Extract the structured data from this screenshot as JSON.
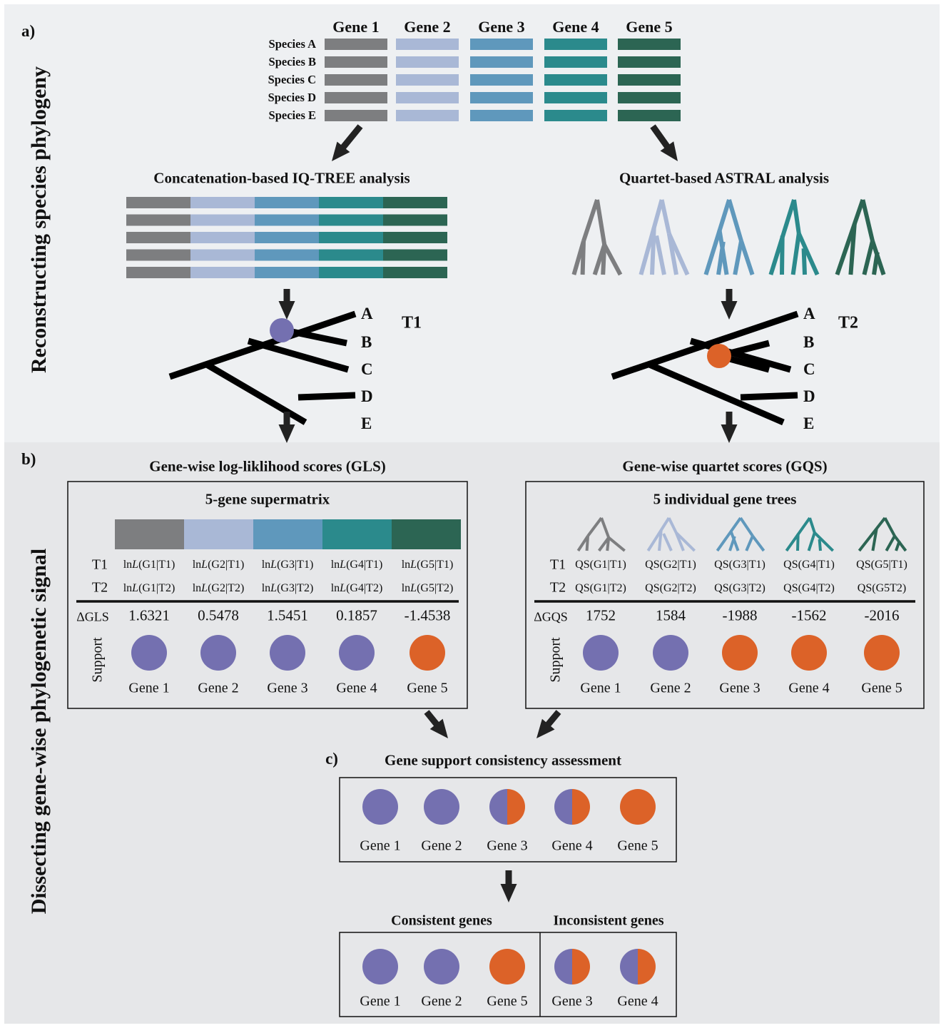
{
  "panel_a": {
    "label": "a",
    "side_title": "Reconstructing species phylogeny",
    "genes": [
      "Gene 1",
      "Gene 2",
      "Gene 3",
      "Gene 4",
      "Gene 5"
    ],
    "species": [
      "Species A",
      "Species B",
      "Species C",
      "Species D",
      "Species E"
    ],
    "gene_colors": [
      "#7d7e80",
      "#a9b8d6",
      "#5f98bc",
      "#2b8a8c",
      "#2c6553"
    ],
    "concat_title": "Concatenation-based IQ-TREE analysis",
    "astral_title": "Quartet-based ASTRAL analysis",
    "tree1_label": "T1",
    "tree2_label": "T2",
    "taxa": [
      "A",
      "B",
      "C",
      "D",
      "E"
    ]
  },
  "panel_b": {
    "label": "b",
    "side_title": "Dissecting gene-wise phylogenetic signal",
    "gls": {
      "title": "Gene-wise log-liklihood scores (GLS)",
      "box_title": "5-gene supermatrix",
      "row_labels": [
        "T1",
        "T2"
      ],
      "t1": [
        "lnL(G1|T1)",
        "lnL(G2|T1)",
        "lnL(G3|T1)",
        "lnL(G4|T1)",
        "lnL(G5|T1)"
      ],
      "t2": [
        "lnL(G1|T2)",
        "lnL(G2|T2)",
        "lnL(G3|T2)",
        "lnL(G4|T2)",
        "lnL(G5|T2)"
      ],
      "delta_label": "ΔGLS",
      "delta": [
        "1.6321",
        "0.5478",
        "1.5451",
        "0.1857",
        "-1.4538"
      ],
      "support_label": "Support",
      "support": [
        "T1",
        "T1",
        "T1",
        "T1",
        "T2"
      ],
      "genes": [
        "Gene 1",
        "Gene 2",
        "Gene 3",
        "Gene 4",
        "Gene 5"
      ]
    },
    "gqs": {
      "title": "Gene-wise quartet scores (GQS)",
      "box_title": "5 individual gene trees",
      "row_labels": [
        "T1",
        "T2"
      ],
      "t1": [
        "QS(G1|T1)",
        "QS(G2|T1)",
        "QS(G3|T1)",
        "QS(G4|T1)",
        "QS(G5|T1)"
      ],
      "t2": [
        "QS(G1|T2)",
        "QS(G2|T2)",
        "QS(G3|T2)",
        "QS(G4|T2)",
        "QS(G5T2)"
      ],
      "delta_label": "ΔGQS",
      "delta": [
        "1752",
        "1584",
        "-1988",
        "-1562",
        "-2016"
      ],
      "support_label": "Support",
      "support": [
        "T1",
        "T1",
        "T2",
        "T2",
        "T2"
      ],
      "genes": [
        "Gene 1",
        "Gene 2",
        "Gene 3",
        "Gene 4",
        "Gene 5"
      ]
    }
  },
  "panel_c": {
    "label": "c)",
    "title": "Gene support consistency assessment",
    "genes": [
      "Gene 1",
      "Gene 2",
      "Gene 3",
      "Gene 4",
      "Gene 5"
    ],
    "states": [
      "T1",
      "T1",
      "mixed",
      "mixed",
      "T2"
    ],
    "consistent_title": "Consistent genes",
    "inconsistent_title": "Inconsistent genes",
    "consistent": [
      {
        "gene": "Gene 1",
        "state": "T1"
      },
      {
        "gene": "Gene 2",
        "state": "T1"
      },
      {
        "gene": "Gene 5",
        "state": "T2"
      }
    ],
    "inconsistent": [
      {
        "gene": "Gene 3",
        "state": "mixed"
      },
      {
        "gene": "Gene 4",
        "state": "mixed"
      }
    ]
  },
  "colors": {
    "t1": "#7470b0",
    "t2": "#dc6228",
    "bg_a": "#eef0f2",
    "bg_b": "#e6e7e9",
    "arrow": "#222222"
  }
}
